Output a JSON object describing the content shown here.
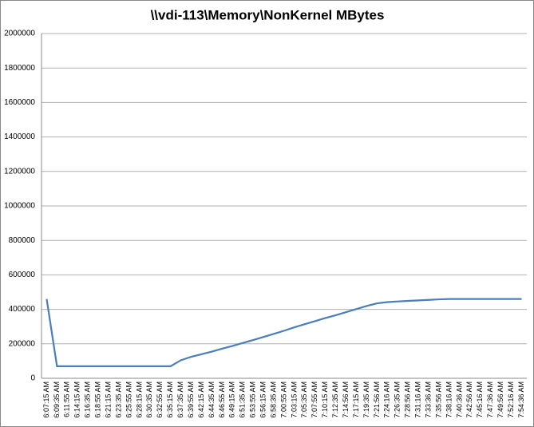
{
  "chart_data": {
    "type": "line",
    "title": "\\\\vdi-113\\Memory\\NonKernel MBytes",
    "categories": [
      "6:07:15 AM",
      "6:09:35 AM",
      "6:11:55 AM",
      "6:14:15 AM",
      "6:16:35 AM",
      "6:18:55 AM",
      "6:21:15 AM",
      "6:23:35 AM",
      "6:25:55 AM",
      "6:28:15 AM",
      "6:30:35 AM",
      "6:32:55 AM",
      "6:35:15 AM",
      "6:37:35 AM",
      "6:39:55 AM",
      "6:42:15 AM",
      "6:44:35 AM",
      "6:46:55 AM",
      "6:49:15 AM",
      "6:51:35 AM",
      "6:53:55 AM",
      "6:56:15 AM",
      "6:58:35 AM",
      "7:00:55 AM",
      "7:03:15 AM",
      "7:05:35 AM",
      "7:07:55 AM",
      "7:10:15 AM",
      "7:12:35 AM",
      "7:14:56 AM",
      "7:17:15 AM",
      "7:19:35 AM",
      "7:21:56 AM",
      "7:24:16 AM",
      "7:26:35 AM",
      "7:28:56 AM",
      "7:31:16 AM",
      "7:33:36 AM",
      "7:35:56 AM",
      "7:38:16 AM",
      "7:40:36 AM",
      "7:42:56 AM",
      "7:45:16 AM",
      "7:47:36 AM",
      "7:49:56 AM",
      "7:52:16 AM",
      "7:54:36 AM"
    ],
    "series": [
      {
        "color": "#4a7ebb",
        "values": [
          460000,
          70000,
          70000,
          70000,
          70000,
          70000,
          70000,
          70000,
          70000,
          70000,
          70000,
          70000,
          70000,
          105000,
          125000,
          140000,
          155000,
          172000,
          188000,
          205000,
          222000,
          240000,
          258000,
          276000,
          296000,
          314000,
          332000,
          350000,
          366000,
          384000,
          402000,
          420000,
          435000,
          442000,
          446000,
          449000,
          452000,
          455000,
          458000,
          460000,
          460000,
          460000,
          460000,
          460000,
          460000,
          460000,
          460000
        ]
      }
    ],
    "ylim": [
      0,
      2000000
    ],
    "yticks": [
      0,
      200000,
      400000,
      600000,
      800000,
      1000000,
      1200000,
      1400000,
      1600000,
      1800000,
      2000000
    ],
    "grid": true
  }
}
